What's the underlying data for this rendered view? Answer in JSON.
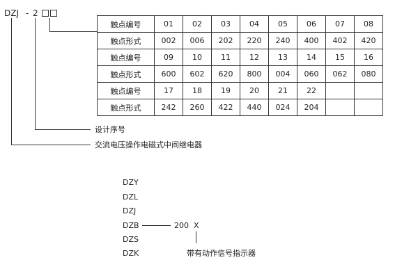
{
  "code": {
    "prefix": "DZJ",
    "dash": "-",
    "digit": "2"
  },
  "table": {
    "rows": [
      {
        "label": "触点编号",
        "cells": [
          "01",
          "02",
          "03",
          "04",
          "05",
          "06",
          "07",
          "08"
        ]
      },
      {
        "label": "触点形式",
        "cells": [
          "002",
          "006",
          "202",
          "220",
          "240",
          "400",
          "402",
          "420"
        ]
      },
      {
        "label": "触点编号",
        "cells": [
          "09",
          "10",
          "11",
          "12",
          "13",
          "14",
          "15",
          "16"
        ]
      },
      {
        "label": "触点形式",
        "cells": [
          "600",
          "602",
          "620",
          "800",
          "004",
          "060",
          "062",
          "080"
        ]
      },
      {
        "label": "触点编号",
        "cells": [
          "17",
          "18",
          "19",
          "20",
          "21",
          "22",
          "",
          ""
        ]
      },
      {
        "label": "触点形式",
        "cells": [
          "242",
          "260",
          "422",
          "440",
          "024",
          "204",
          "",
          ""
        ]
      }
    ]
  },
  "labels": {
    "design_no": "设计序号",
    "relay_type": "交流电压操作电磁式中间继电器"
  },
  "series": [
    "DZY",
    "DZL",
    "DZJ",
    "DZB",
    "DZS",
    "DZK"
  ],
  "suffix": {
    "number": "200",
    "letter": "X",
    "note": "带有动作信号指示器"
  }
}
